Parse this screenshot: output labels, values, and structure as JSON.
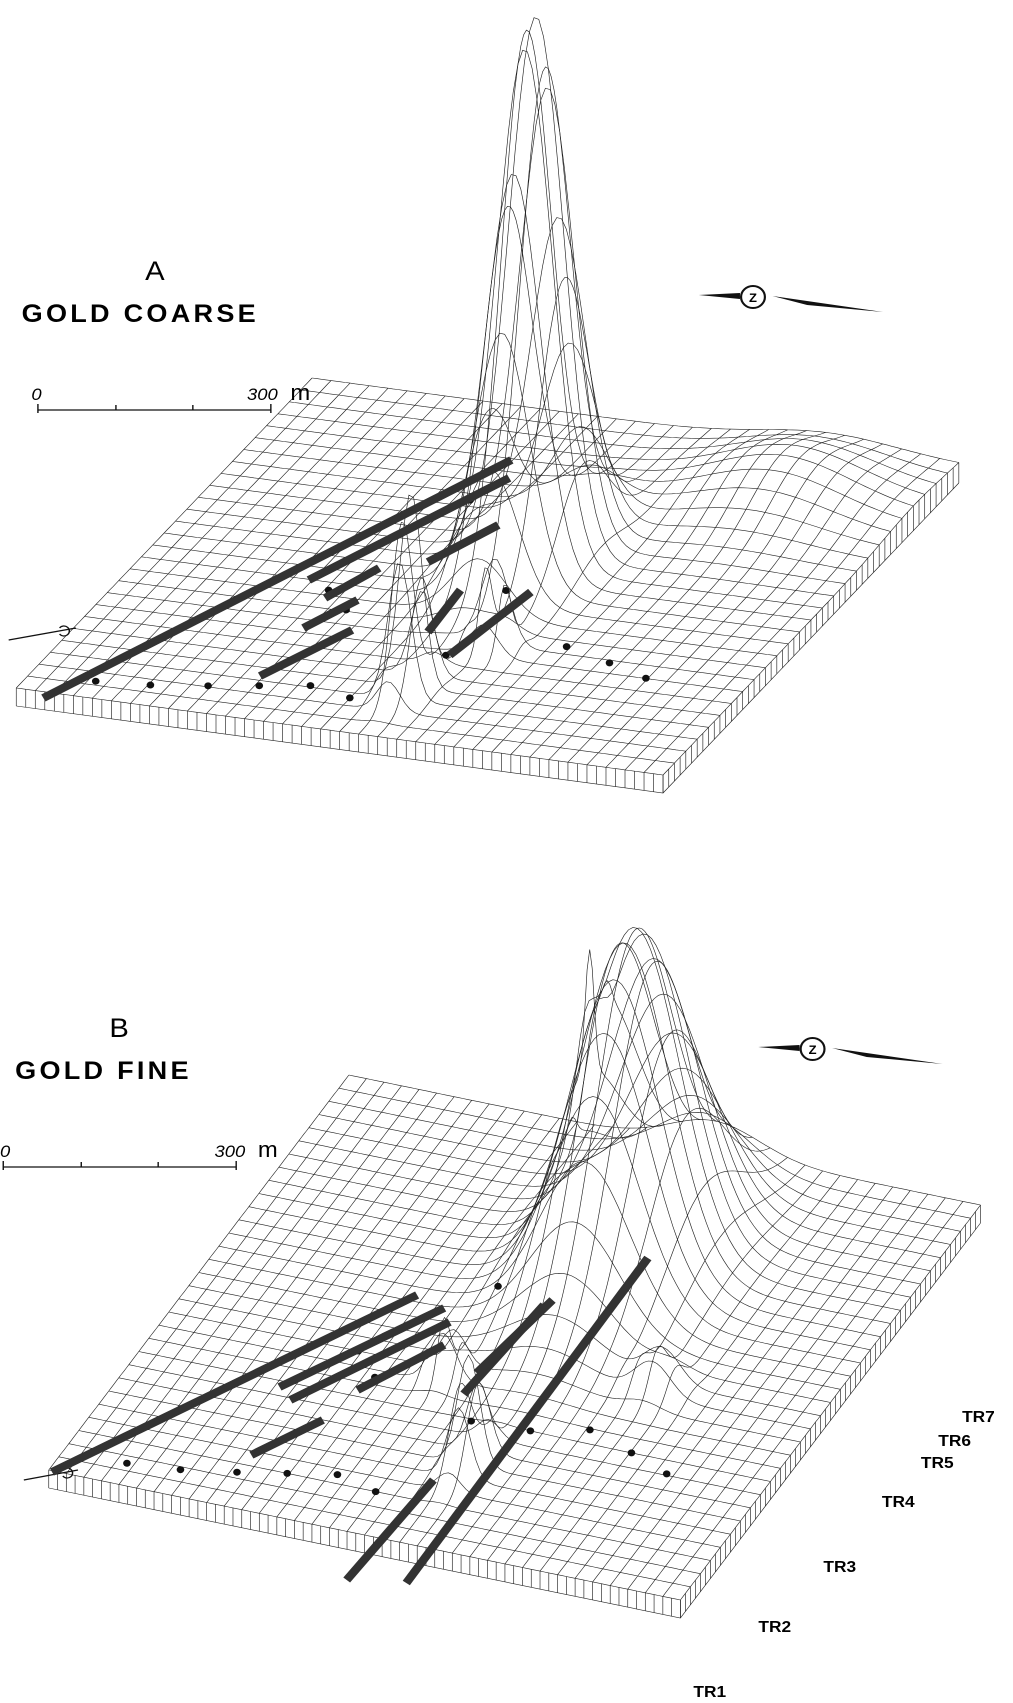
{
  "panels": [
    {
      "letter": "A",
      "title": "GOLD COARSE",
      "scale": {
        "start": "0",
        "end": "300",
        "unit": "m"
      }
    },
    {
      "letter": "B",
      "title": "GOLD FINE",
      "scale": {
        "start": "0",
        "end": "300",
        "unit": "m"
      },
      "trenches": [
        "TR1",
        "TR2",
        "TR3",
        "TR4",
        "TR5",
        "TR6",
        "TR7"
      ]
    }
  ]
}
